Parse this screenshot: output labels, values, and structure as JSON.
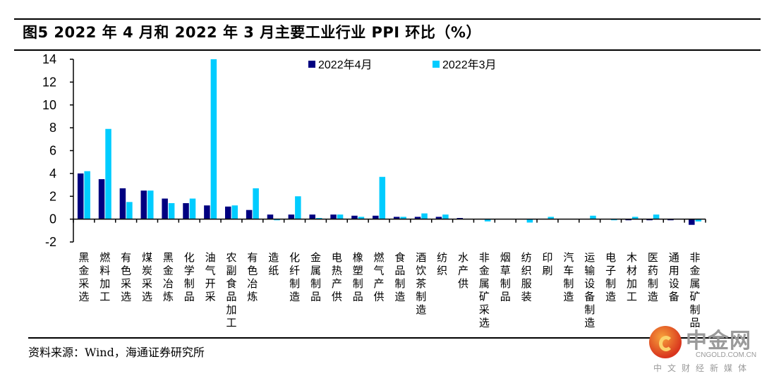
{
  "figure": {
    "title": "图5  2022 年 4 月和 2022 年 3 月主要工业行业 PPI 环比（%）",
    "source": "资料来源：Wind，海通证券研究所"
  },
  "watermark": {
    "name": "中金网",
    "domain": "CNGOLD.COM.CN",
    "tagline": "中文财经新媒体"
  },
  "chart_data": {
    "type": "bar",
    "title": "2022 年 4 月和 2022 年 3 月主要工业行业 PPI 环比（%）",
    "xlabel": "",
    "ylabel": "",
    "ylim": [
      -2,
      14
    ],
    "yticks": [
      -2,
      0,
      2,
      4,
      6,
      8,
      10,
      12,
      14
    ],
    "grid": false,
    "legend_position": "top-center",
    "categories": [
      "黑金采选",
      "燃料加工",
      "有色采选",
      "煤炭采选",
      "黑金冶炼",
      "化学制品",
      "油气开采",
      "农副食品加工",
      "有色冶炼",
      "造纸",
      "化纤制造",
      "金属制品",
      "电热产供",
      "橡塑制品",
      "燃气产供",
      "食品制造",
      "酒饮茶制造",
      "纺织",
      "水产供",
      "非金属矿采选",
      "烟草制品",
      "纺织服装",
      "印刷",
      "汽车制造",
      "运输设备制造",
      "电子制造",
      "木材加工",
      "医药制造",
      "通用设备",
      "非金属矿制品"
    ],
    "series": [
      {
        "name": "2022年4月",
        "color": "#000080",
        "values": [
          4.0,
          3.5,
          2.7,
          2.5,
          1.8,
          1.4,
          1.2,
          1.1,
          0.8,
          0.4,
          0.4,
          0.4,
          0.4,
          0.3,
          0.3,
          0.2,
          0.2,
          0.2,
          0.1,
          0.0,
          0.0,
          0.0,
          0.0,
          0.0,
          0.0,
          0.0,
          -0.1,
          -0.1,
          -0.1,
          -0.5
        ]
      },
      {
        "name": "2022年3月",
        "color": "#00CCFF",
        "values": [
          4.2,
          7.9,
          1.5,
          2.5,
          1.4,
          1.8,
          14.0,
          1.2,
          2.7,
          -0.1,
          2.0,
          0.1,
          0.4,
          0.2,
          3.7,
          0.2,
          0.5,
          0.4,
          0.0,
          -0.2,
          0.0,
          -0.3,
          0.2,
          0.0,
          0.3,
          -0.1,
          0.2,
          0.4,
          0.0,
          -0.2
        ]
      }
    ]
  }
}
